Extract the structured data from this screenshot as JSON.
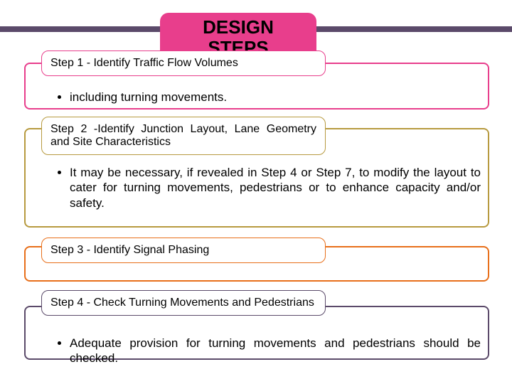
{
  "header": {
    "title_line1": "DESIGN",
    "title_line2": "STEPS",
    "bg_color": "#e83e8c",
    "radius": 12,
    "title_fontsize": 26
  },
  "top_stripe_color": "#5b4a6a",
  "steps": [
    {
      "label": "Step 1 - Identify Traffic Flow Volumes",
      "border_color": "#e83e8c",
      "frame_color": "#e83e8c",
      "bullet": "including turning movements."
    },
    {
      "label": "Step 2 -Identify Junction Layout, Lane Geometry and Site Characteristics",
      "border_color": "#b79a3f",
      "frame_color": "#b79a3f",
      "bullet": "It may be necessary, if revealed in Step 4 or Step 7, to modify the layout to cater for turning movements, pedestrians or to enhance capacity and/or safety."
    },
    {
      "label": "Step 3 - Identify Signal Phasing",
      "border_color": "#e86f1a",
      "frame_color": "#e86f1a",
      "bullet": null
    },
    {
      "label": "Step 4 - Check Turning Movements and Pedestrians",
      "border_color": "#5b4a6a",
      "frame_color": "#5b4a6a",
      "bullet": "Adequate provision for turning movements and pedestrians should be checked."
    }
  ],
  "text_color": "#000000",
  "bg_color": "#ffffff",
  "body_fontsize": 17,
  "steplabel_fontsize": 16
}
